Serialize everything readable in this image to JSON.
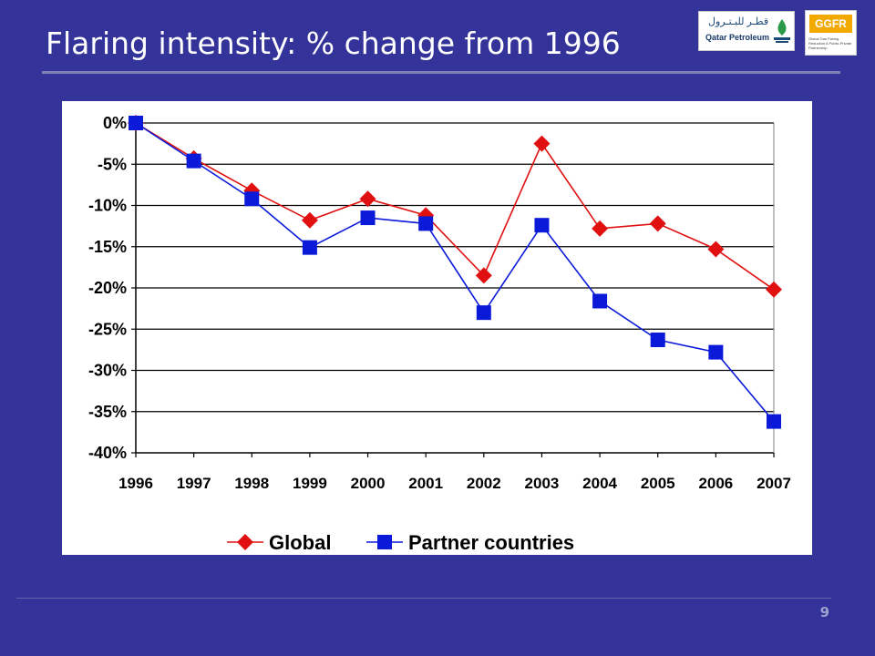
{
  "slide": {
    "title": "Flaring intensity: % change from 1996",
    "page_number": "9",
    "background_color": "#333399"
  },
  "logos": {
    "qatar_petroleum": {
      "arabic": "قطـر للبـتـرول",
      "latin": "Qatar Petroleum"
    },
    "ggfr": {
      "mark": "GGFR",
      "tagline": "Global Gas Flaring Reduction A Public-Private Partnership"
    }
  },
  "chart_data": {
    "type": "line",
    "x": [
      "1996",
      "1997",
      "1998",
      "1999",
      "2000",
      "2001",
      "2002",
      "2003",
      "2004",
      "2005",
      "2006",
      "2007"
    ],
    "series": [
      {
        "name": "Global",
        "color": "#e01010",
        "marker": "diamond",
        "values": [
          0,
          -4.3,
          -8.2,
          -11.8,
          -9.2,
          -11.2,
          -18.5,
          -2.5,
          -12.8,
          -12.2,
          -15.3,
          -20.2
        ]
      },
      {
        "name": "Partner countries",
        "color": "#0a1ad8",
        "marker": "square",
        "values": [
          0,
          -4.6,
          -9.2,
          -15.1,
          -11.5,
          -12.2,
          -23.0,
          -12.4,
          -21.6,
          -26.3,
          -27.8,
          -36.2
        ]
      }
    ],
    "ylim": [
      -40,
      0
    ],
    "yticks": [
      0,
      -5,
      -10,
      -15,
      -20,
      -25,
      -30,
      -35,
      -40
    ],
    "ytick_labels": [
      "0%",
      "-5%",
      "-10%",
      "-15%",
      "-20%",
      "-25%",
      "-30%",
      "-35%",
      "-40%"
    ],
    "grid": true,
    "legend": "bottom"
  }
}
